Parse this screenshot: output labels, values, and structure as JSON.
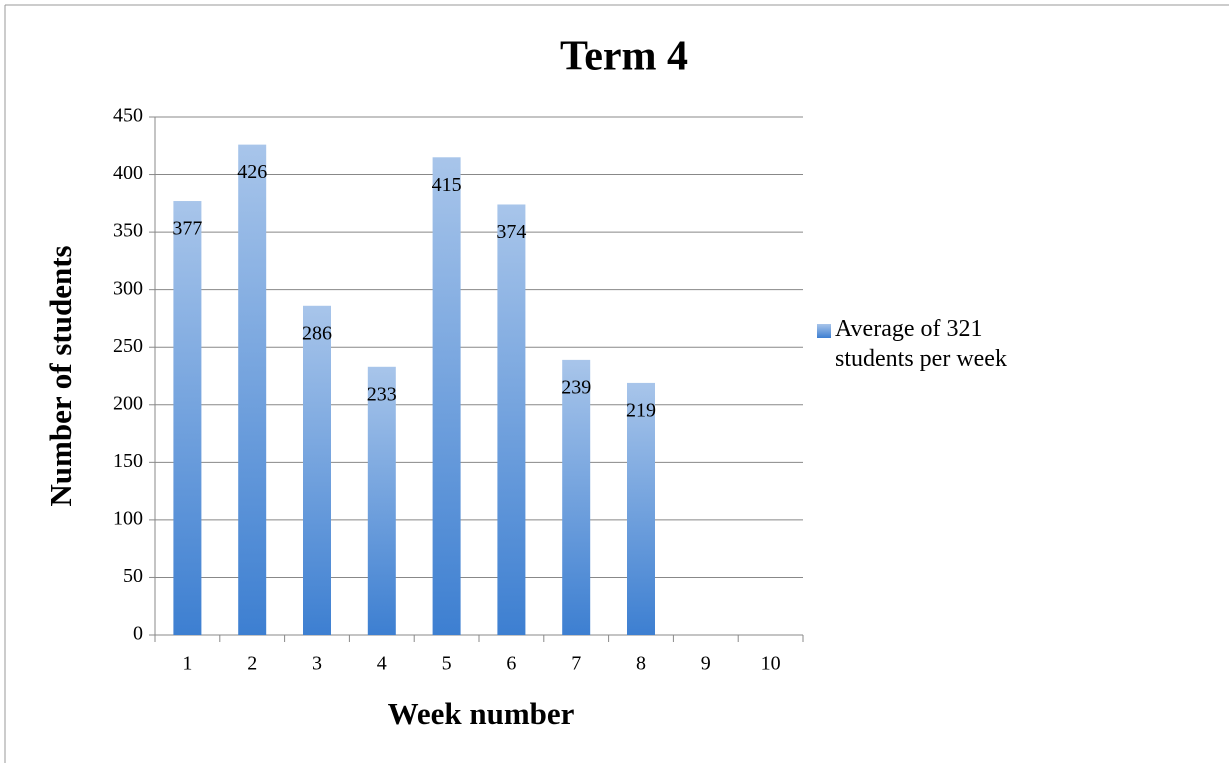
{
  "chart_data": {
    "type": "bar",
    "title": "Term 4",
    "x_label": "Week number",
    "y_label": "Number of students",
    "categories": [
      "1",
      "2",
      "3",
      "4",
      "5",
      "6",
      "7",
      "8",
      "9",
      "10"
    ],
    "series": [
      {
        "name": "Average of 321 students per week",
        "color": "#3d7fd1",
        "values": [
          377,
          426,
          286,
          233,
          415,
          374,
          239,
          219,
          null,
          null
        ]
      }
    ],
    "ylim": [
      0,
      450
    ],
    "yticks": [
      0,
      50,
      100,
      150,
      200,
      250,
      300,
      350,
      400,
      450
    ],
    "grid": true,
    "legend": "right"
  }
}
